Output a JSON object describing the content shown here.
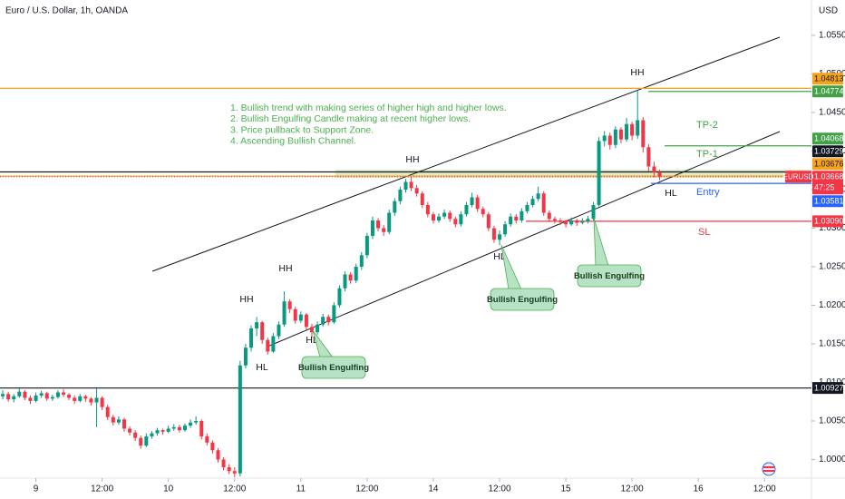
{
  "header": {
    "title": "Euro / U.S. Dollar, 1h, OANDA",
    "currency": "USD"
  },
  "chart_data": {
    "type": "candlestick",
    "x": [
      0,
      1,
      2,
      3,
      4,
      5,
      6,
      7,
      8,
      9,
      10,
      11,
      12,
      13,
      14,
      15,
      16,
      17,
      18,
      19,
      20,
      21,
      22,
      23,
      24,
      25,
      26,
      27,
      28,
      29,
      30,
      31,
      32,
      33,
      34,
      35,
      36,
      37,
      38,
      39,
      40,
      41,
      42,
      43,
      44,
      45,
      46,
      47,
      48,
      49,
      50,
      51,
      52,
      53,
      54,
      55,
      56,
      57,
      58,
      59,
      60,
      61,
      62,
      63,
      64,
      65,
      66,
      67,
      68,
      69,
      70,
      71,
      72,
      73,
      74,
      75,
      76,
      77,
      78,
      79,
      80,
      81,
      82,
      83,
      84,
      85,
      86,
      87,
      88,
      89,
      90,
      91,
      92,
      93,
      94,
      95,
      96,
      97,
      98,
      99,
      100,
      101,
      102,
      103,
      104,
      105,
      106,
      107,
      108,
      109,
      110,
      111,
      112,
      113,
      114,
      115,
      116,
      117,
      118,
      119
    ],
    "ohlc": [
      [
        1.0082,
        1.009,
        1.0078,
        1.0085
      ],
      [
        1.0085,
        1.0088,
        1.0075,
        1.0078
      ],
      [
        1.0078,
        1.0085,
        1.0074,
        1.0082
      ],
      [
        1.0082,
        1.0092,
        1.008,
        1.0088
      ],
      [
        1.0088,
        1.009,
        1.0077,
        1.008
      ],
      [
        1.008,
        1.0083,
        1.0072,
        1.0076
      ],
      [
        1.0076,
        1.0087,
        1.0074,
        1.0083
      ],
      [
        1.0083,
        1.0089,
        1.008,
        1.0086
      ],
      [
        1.0086,
        1.0088,
        1.0076,
        1.0079
      ],
      [
        1.0079,
        1.0084,
        1.0076,
        1.0081
      ],
      [
        1.0081,
        1.009,
        1.0079,
        1.0087
      ],
      [
        1.0087,
        1.0091,
        1.0081,
        1.0084
      ],
      [
        1.0084,
        1.0086,
        1.0077,
        1.008
      ],
      [
        1.008,
        1.0083,
        1.0072,
        1.0076
      ],
      [
        1.0076,
        1.0085,
        1.0074,
        1.0082
      ],
      [
        1.0082,
        1.0084,
        1.0075,
        1.0079
      ],
      [
        1.0079,
        1.0081,
        1.007,
        1.0074
      ],
      [
        1.0074,
        1.0092,
        1.0042,
        1.008
      ],
      [
        1.008,
        1.0082,
        1.0064,
        1.0068
      ],
      [
        1.0068,
        1.0071,
        1.0051,
        1.0055
      ],
      [
        1.0055,
        1.0058,
        1.0044,
        1.0048
      ],
      [
        1.0048,
        1.0056,
        1.0045,
        1.0052
      ],
      [
        1.0052,
        1.0054,
        1.0036,
        1.004
      ],
      [
        1.004,
        1.0043,
        1.0031,
        1.0035
      ],
      [
        1.0035,
        1.0038,
        1.0024,
        1.0028
      ],
      [
        1.0028,
        1.0031,
        1.0014,
        1.0018
      ],
      [
        1.0018,
        1.0034,
        1.0016,
        1.003
      ],
      [
        1.003,
        1.0037,
        1.0027,
        1.0034
      ],
      [
        1.0034,
        1.0041,
        1.0031,
        1.0038
      ],
      [
        1.0038,
        1.004,
        1.0032,
        1.0036
      ],
      [
        1.0036,
        1.0044,
        1.0034,
        1.004
      ],
      [
        1.004,
        1.0046,
        1.0037,
        1.0042
      ],
      [
        1.0042,
        1.0045,
        1.0035,
        1.0038
      ],
      [
        1.0038,
        1.0047,
        1.0036,
        1.0044
      ],
      [
        1.0044,
        1.0052,
        1.0041,
        1.0048
      ],
      [
        1.0048,
        1.0056,
        1.0045,
        1.005
      ],
      [
        1.005,
        1.0052,
        1.0026,
        1.003
      ],
      [
        1.003,
        1.0034,
        1.0018,
        1.0022
      ],
      [
        1.0022,
        1.0025,
        1.0008,
        1.0012
      ],
      [
        1.0012,
        1.0015,
        0.9996,
        1.0
      ],
      [
        1.0,
        1.0003,
        0.9986,
        0.999
      ],
      [
        0.999,
        0.9994,
        0.9981,
        0.9985
      ],
      [
        0.9985,
        0.999,
        0.9975,
        0.9982
      ],
      [
        0.9982,
        1.0128,
        0.9978,
        1.0122
      ],
      [
        1.0122,
        1.015,
        1.0118,
        1.0145
      ],
      [
        1.0145,
        1.0174,
        1.014,
        1.017
      ],
      [
        1.017,
        1.0185,
        1.016,
        1.0178
      ],
      [
        1.0178,
        1.018,
        1.015,
        1.0155
      ],
      [
        1.0155,
        1.0158,
        1.0136,
        1.014
      ],
      [
        1.014,
        1.0164,
        1.0138,
        1.016
      ],
      [
        1.016,
        1.0179,
        1.0156,
        1.0175
      ],
      [
        1.0175,
        1.0218,
        1.0172,
        1.0205
      ],
      [
        1.0205,
        1.0208,
        1.019,
        1.0195
      ],
      [
        1.0195,
        1.0198,
        1.0176,
        1.018
      ],
      [
        1.018,
        1.0192,
        1.0177,
        1.0188
      ],
      [
        1.0188,
        1.019,
        1.0168,
        1.0172
      ],
      [
        1.0172,
        1.0176,
        1.0158,
        1.0165
      ],
      [
        1.0165,
        1.0179,
        1.0162,
        1.0175
      ],
      [
        1.0175,
        1.0189,
        1.0172,
        1.0185
      ],
      [
        1.0185,
        1.0188,
        1.0174,
        1.0178
      ],
      [
        1.0178,
        1.0204,
        1.0176,
        1.02
      ],
      [
        1.02,
        1.0226,
        1.0197,
        1.0222
      ],
      [
        1.0222,
        1.0244,
        1.0218,
        1.024
      ],
      [
        1.024,
        1.0243,
        1.0228,
        1.0232
      ],
      [
        1.0232,
        1.0254,
        1.0229,
        1.025
      ],
      [
        1.025,
        1.0269,
        1.0246,
        1.0265
      ],
      [
        1.0265,
        1.0294,
        1.0261,
        1.029
      ],
      [
        1.029,
        1.0315,
        1.0286,
        1.031
      ],
      [
        1.031,
        1.0313,
        1.0296,
        1.03
      ],
      [
        1.03,
        1.0304,
        1.029,
        1.0295
      ],
      [
        1.0295,
        1.0324,
        1.0292,
        1.032
      ],
      [
        1.032,
        1.0339,
        1.0316,
        1.0335
      ],
      [
        1.0335,
        1.0354,
        1.0331,
        1.035
      ],
      [
        1.035,
        1.0364,
        1.0346,
        1.036
      ],
      [
        1.036,
        1.0366,
        1.0348,
        1.0352
      ],
      [
        1.0352,
        1.0356,
        1.0341,
        1.0345
      ],
      [
        1.0345,
        1.0348,
        1.0326,
        1.033
      ],
      [
        1.033,
        1.0334,
        1.0314,
        1.0318
      ],
      [
        1.0318,
        1.0321,
        1.0306,
        1.031
      ],
      [
        1.031,
        1.0319,
        1.0307,
        1.0315
      ],
      [
        1.0315,
        1.0324,
        1.0312,
        1.032
      ],
      [
        1.032,
        1.0323,
        1.0308,
        1.0312
      ],
      [
        1.0312,
        1.0315,
        1.0301,
        1.0305
      ],
      [
        1.0305,
        1.0322,
        1.0302,
        1.0318
      ],
      [
        1.0318,
        1.0334,
        1.0315,
        1.033
      ],
      [
        1.033,
        1.0346,
        1.0327,
        1.034
      ],
      [
        1.034,
        1.0343,
        1.0321,
        1.0325
      ],
      [
        1.0325,
        1.0328,
        1.0314,
        1.0318
      ],
      [
        1.0318,
        1.0321,
        1.0296,
        1.03
      ],
      [
        1.03,
        1.0303,
        1.0281,
        1.0285
      ],
      [
        1.0285,
        1.0297,
        1.0278,
        1.0292
      ],
      [
        1.0292,
        1.0309,
        1.0289,
        1.0305
      ],
      [
        1.0305,
        1.0319,
        1.0302,
        1.0315
      ],
      [
        1.0315,
        1.0318,
        1.0306,
        1.031
      ],
      [
        1.031,
        1.0326,
        1.0307,
        1.0322
      ],
      [
        1.0322,
        1.0334,
        1.0319,
        1.033
      ],
      [
        1.033,
        1.0342,
        1.0327,
        1.0338
      ],
      [
        1.0338,
        1.0354,
        1.0335,
        1.0345
      ],
      [
        1.0345,
        1.0348,
        1.0316,
        1.032
      ],
      [
        1.032,
        1.0323,
        1.0308,
        1.0312
      ],
      [
        1.0312,
        1.0315,
        1.0306,
        1.031
      ],
      [
        1.031,
        1.0313,
        1.0304,
        1.0308
      ],
      [
        1.0308,
        1.0311,
        1.0301,
        1.0305
      ],
      [
        1.0305,
        1.0314,
        1.0303,
        1.031
      ],
      [
        1.031,
        1.0312,
        1.0303,
        1.0307
      ],
      [
        1.0307,
        1.0313,
        1.0305,
        1.0309
      ],
      [
        1.0309,
        1.0316,
        1.0306,
        1.0312
      ],
      [
        1.0312,
        1.0334,
        1.031,
        1.033
      ],
      [
        1.033,
        1.0418,
        1.0328,
        1.0413
      ],
      [
        1.0413,
        1.0426,
        1.0406,
        1.042
      ],
      [
        1.042,
        1.0424,
        1.0402,
        1.0408
      ],
      [
        1.0408,
        1.0432,
        1.0404,
        1.0428
      ],
      [
        1.0428,
        1.0431,
        1.041,
        1.0415
      ],
      [
        1.0415,
        1.0443,
        1.0412,
        1.0435
      ],
      [
        1.0435,
        1.0438,
        1.0414,
        1.042
      ],
      [
        1.042,
        1.0478,
        1.0416,
        1.044
      ],
      [
        1.044,
        1.0444,
        1.0398,
        1.0405
      ],
      [
        1.0405,
        1.0409,
        1.0374,
        1.038
      ],
      [
        1.038,
        1.0386,
        1.0366,
        1.0372
      ],
      [
        1.0372,
        1.0376,
        1.0362,
        1.03668
      ]
    ],
    "up_color": "#089981",
    "down_color": "#f23645",
    "xlim": [
      -0.5,
      146.5
    ],
    "xticks": [
      {
        "value": 6,
        "label": "9"
      },
      {
        "value": 18,
        "label": "12:00"
      },
      {
        "value": 30,
        "label": "10"
      },
      {
        "value": 42,
        "label": "12:00"
      },
      {
        "value": 54,
        "label": "11"
      },
      {
        "value": 66,
        "label": "12:00"
      },
      {
        "value": 78,
        "label": "14"
      },
      {
        "value": 90,
        "label": "12:00"
      },
      {
        "value": 102,
        "label": "15"
      },
      {
        "value": 114,
        "label": "12:00"
      },
      {
        "value": 126,
        "label": "16"
      },
      {
        "value": 138,
        "label": "12:00"
      }
    ],
    "ylim": [
      0.99782,
      1.05959
    ],
    "yticks": [
      {
        "value": 1.055,
        "label": "1.05500"
      },
      {
        "value": 1.05,
        "label": "1.05000"
      },
      {
        "value": 1.045,
        "label": "1.04500"
      },
      {
        "value": 1.04,
        "label": "1.04000"
      },
      {
        "value": 1.035,
        "label": "1.03500"
      },
      {
        "value": 1.03,
        "label": "1.03000"
      },
      {
        "value": 1.025,
        "label": "1.02500"
      },
      {
        "value": 1.02,
        "label": "1.02000"
      },
      {
        "value": 1.015,
        "label": "1.01500"
      },
      {
        "value": 1.01,
        "label": "1.01000"
      },
      {
        "value": 1.005,
        "label": "1.00500"
      },
      {
        "value": 1,
        "label": "1.00000"
      }
    ],
    "grid": false,
    "price_lines": [
      {
        "value": 1.04813,
        "label": "1.04813",
        "color": "#f7a21b"
      },
      {
        "value": 1.04774,
        "label": "1.04774",
        "color": "#43a047",
        "name": "TP-2"
      },
      {
        "value": 1.04068,
        "label": "1.04068",
        "color": "#43a047",
        "name": "TP-1"
      },
      {
        "value": 1.03729,
        "label": "1.03729",
        "color": "#131722"
      },
      {
        "value": 1.03676,
        "label": "1.03676",
        "color": "#f7a21b"
      },
      {
        "value": 1.03581,
        "label": "1.03581",
        "color": "#2962ff",
        "name": "Entry"
      },
      {
        "value": 1.0309,
        "label": "1.03090",
        "color": "#f23645",
        "name": "SL"
      },
      {
        "value": 1.00927,
        "label": "1.00927",
        "color": "#131722"
      }
    ],
    "last_price": {
      "symbol": "EURUSD",
      "value": 1.03668,
      "label": "1.03668",
      "countdown": "47:25",
      "color": "#f23645"
    },
    "notes": [
      "1. Bullish trend with making series of higher high and higher lows.",
      "2. Bullish Engulfing Candle making at recent higher lows.",
      "3. Price pullback to Support Zone.",
      "4. Ascending Bullish Channel."
    ],
    "swing_labels": [
      "HH",
      "HH",
      "HH",
      "HH",
      "HL",
      "HL",
      "HL",
      "HL"
    ],
    "callouts": [
      "Bullish Engulfing",
      "Bullish Engulfing",
      "Bullish Engulfing"
    ]
  }
}
